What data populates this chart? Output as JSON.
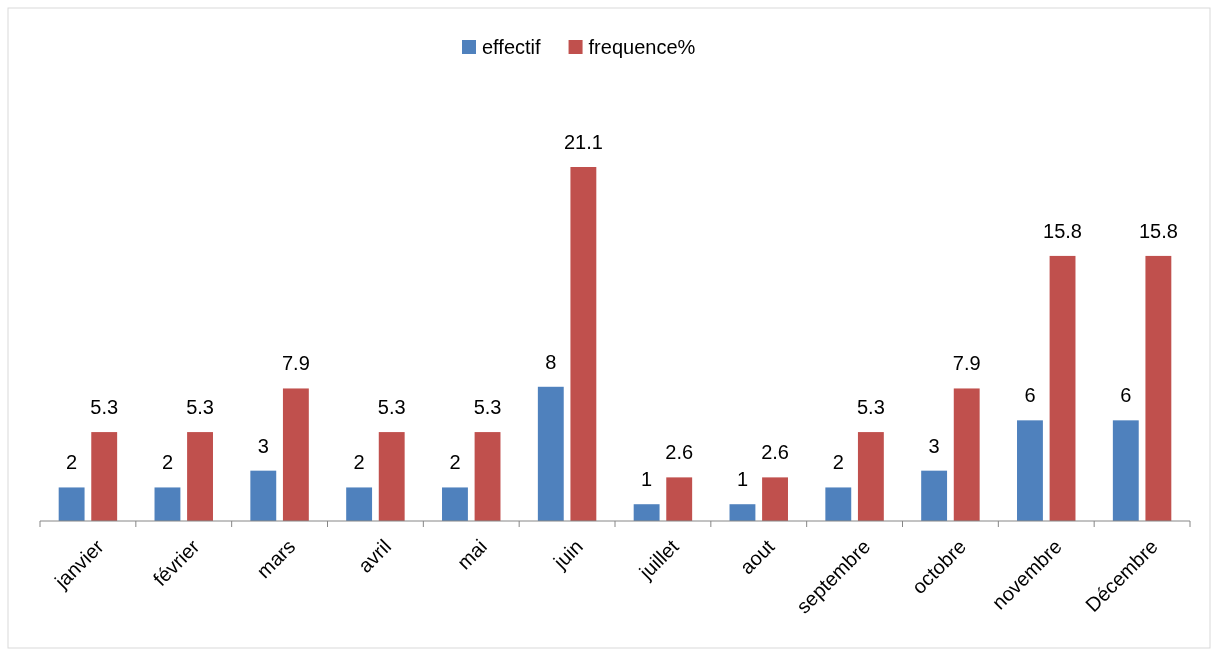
{
  "chart_data": {
    "type": "bar",
    "categories": [
      "janvier",
      "février",
      "mars",
      "avril",
      "mai",
      "juin",
      "juillet",
      "aout",
      "septembre",
      "octobre",
      "novembre",
      "Décembre"
    ],
    "series": [
      {
        "name": "effectif",
        "color": "#4f81bd",
        "values": [
          2,
          2,
          3,
          2,
          2,
          8,
          1,
          1,
          2,
          3,
          6,
          6
        ]
      },
      {
        "name": "frequence%",
        "color": "#c0504d",
        "values": [
          5.3,
          5.3,
          7.9,
          5.3,
          5.3,
          21.1,
          2.6,
          2.6,
          5.3,
          7.9,
          15.8,
          15.8
        ]
      }
    ],
    "data_labels": true,
    "legend": "top"
  }
}
